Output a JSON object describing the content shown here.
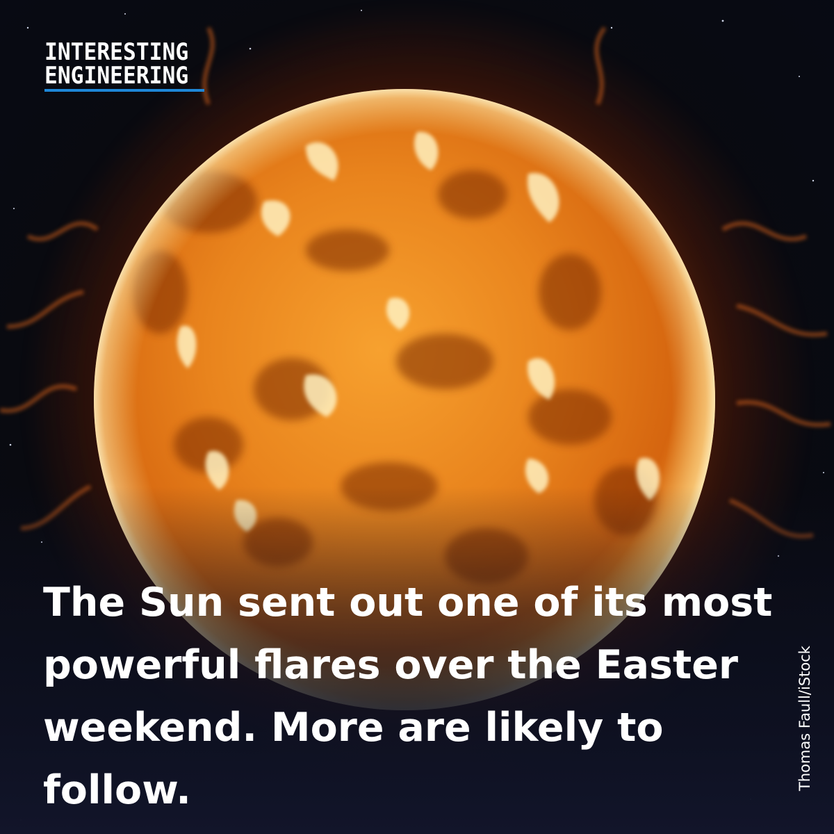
{
  "logo": {
    "line1": "INTERESTING",
    "line2": "ENGINEERING",
    "underline_color": "#1e87d8"
  },
  "headline": {
    "line1": "The Sun sent out one of its most",
    "line2": "powerful flares over the Easter",
    "line3": "weekend. More are likely to",
    "line4": "follow.",
    "highlight_color": "#1976c2"
  },
  "photo_credit": "Thomas Faull/iStock",
  "image": {
    "subject": "sun-with-solar-flares"
  }
}
